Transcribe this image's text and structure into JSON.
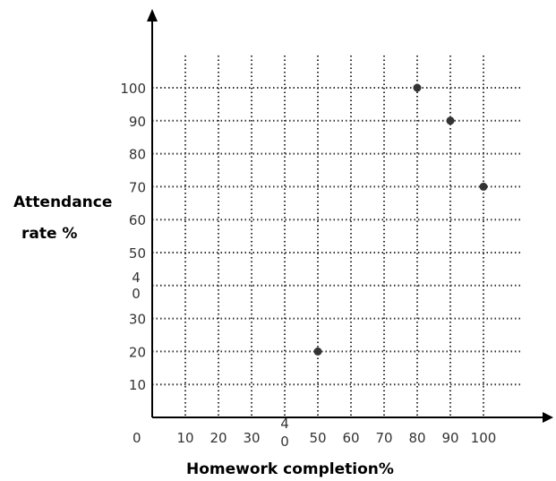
{
  "chart_data": {
    "type": "scatter",
    "title": "",
    "xlabel": "Homework completion%",
    "ylabel_lines": [
      "Attendance",
      "rate %"
    ],
    "xlim": [
      0,
      100
    ],
    "ylim": [
      0,
      100
    ],
    "grid": true,
    "grid_style": "dotted",
    "x_ticks": [
      {
        "value": 10,
        "label": "10"
      },
      {
        "value": 20,
        "label": "20"
      },
      {
        "value": 30,
        "label": "30"
      },
      {
        "value": 40,
        "label": "4\n0"
      },
      {
        "value": 50,
        "label": "50"
      },
      {
        "value": 60,
        "label": "60"
      },
      {
        "value": 70,
        "label": "70"
      },
      {
        "value": 80,
        "label": "80"
      },
      {
        "value": 90,
        "label": "90"
      },
      {
        "value": 100,
        "label": "100"
      }
    ],
    "y_ticks": [
      {
        "value": 10,
        "label": "10"
      },
      {
        "value": 20,
        "label": "20"
      },
      {
        "value": 30,
        "label": "30"
      },
      {
        "value": 40,
        "label": "4\n0"
      },
      {
        "value": 50,
        "label": "50"
      },
      {
        "value": 60,
        "label": "60"
      },
      {
        "value": 70,
        "label": "70"
      },
      {
        "value": 80,
        "label": "80"
      },
      {
        "value": 90,
        "label": "90"
      },
      {
        "value": 100,
        "label": "100"
      }
    ],
    "origin_label": "0",
    "points": [
      {
        "x": 50,
        "y": 20
      },
      {
        "x": 80,
        "y": 100
      },
      {
        "x": 90,
        "y": 90
      },
      {
        "x": 100,
        "y": 70
      }
    ],
    "colors": {
      "axis": "#000000",
      "grid": "#333333",
      "point": "#333333",
      "text": "#333333"
    }
  }
}
